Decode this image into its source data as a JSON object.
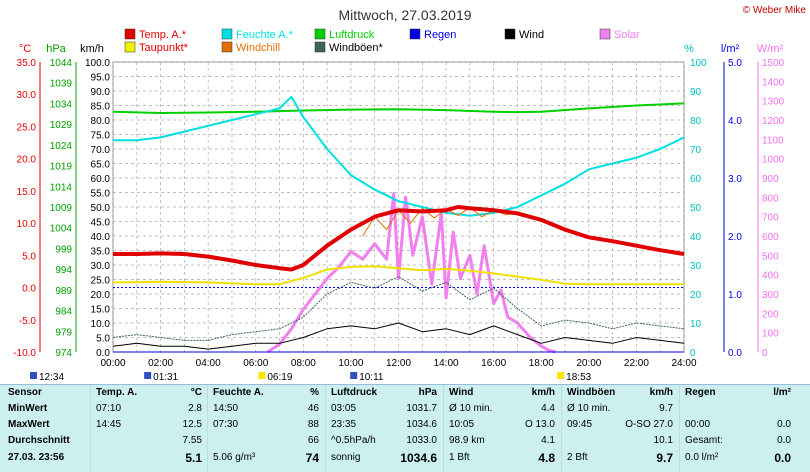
{
  "title": "Mittwoch, 27.03.2019",
  "copyright": "© Weber Mike",
  "colors": {
    "temp": "#e00000",
    "dew": "#f0e000",
    "humidity": "#00e0e0",
    "windchill": "#e07000",
    "pressure": "#00d000",
    "gusts": "#406060",
    "rain": "#0000e0",
    "wind": "#000000",
    "solar": "#f080f0",
    "table_bg": "#ccf0f0"
  },
  "legend": [
    {
      "label": "Temp. A.*",
      "color": "#e00000"
    },
    {
      "label": "Feuchte A.*",
      "color": "#00e0e0"
    },
    {
      "label": "Luftdruck",
      "color": "#00d000"
    },
    {
      "label": "Regen",
      "color": "#0000e0"
    },
    {
      "label": "Wind",
      "color": "#000000"
    },
    {
      "label": "Solar",
      "color": "#f080f0"
    },
    {
      "label": "Taupunkt*",
      "color": "#f0f000"
    },
    {
      "label": "Windchill",
      "color": "#e07000"
    },
    {
      "label": "Windböen*",
      "color": "#406060"
    }
  ],
  "chart_data": {
    "type": "line",
    "axes": {
      "temp": {
        "unit": "°C",
        "min": -10,
        "max": 35,
        "ticks": [
          "35.0",
          "30.0",
          "25.0",
          "20.0",
          "15.0",
          "10.0",
          "5.0",
          "0.0",
          "-5.0",
          "-10.0"
        ]
      },
      "pressure": {
        "unit": "hPa",
        "min": 974,
        "max": 1044,
        "ticks": [
          "1044",
          "1039",
          "1034",
          "1029",
          "1024",
          "1019",
          "1014",
          "1009",
          "1004",
          "999",
          "994",
          "989",
          "984",
          "979",
          "974"
        ]
      },
      "wind": {
        "unit": "km/h",
        "min": 0,
        "max": 100,
        "ticks": [
          "100.0",
          "95.0",
          "90.0",
          "85.0",
          "80.0",
          "75.0",
          "70.0",
          "65.0",
          "60.0",
          "55.0",
          "50.0",
          "45.0",
          "40.0",
          "35.0",
          "30.0",
          "25.0",
          "20.0",
          "15.0",
          "10.0",
          "5.0",
          "0.0"
        ]
      },
      "humidity": {
        "unit": "%",
        "min": 0,
        "max": 100,
        "ticks": [
          "100",
          "90",
          "80",
          "70",
          "60",
          "50",
          "40",
          "30",
          "20",
          "10",
          "0"
        ]
      },
      "rain": {
        "unit": "l/m²",
        "min": 0,
        "max": 5,
        "ticks": [
          "5.0",
          "4.0",
          "3.0",
          "2.0",
          "1.0",
          "0.0"
        ]
      },
      "solar": {
        "unit": "W/m²",
        "min": 0,
        "max": 1500,
        "ticks": [
          "1500",
          "1400",
          "1300",
          "1200",
          "1100",
          "1000",
          "900",
          "800",
          "700",
          "600",
          "500",
          "400",
          "300",
          "200",
          "100",
          "0"
        ]
      },
      "x": {
        "min": 0,
        "max": 24,
        "ticks": [
          "00:00",
          "02:00",
          "04:00",
          "06:00",
          "08:00",
          "10:00",
          "12:00",
          "14:00",
          "16:00",
          "18:00",
          "20:00",
          "22:00",
          "24:00"
        ]
      }
    },
    "series": [
      {
        "name": "Temp. A.*",
        "axis": "temp",
        "x": [
          0,
          1,
          2,
          3,
          4,
          5,
          6,
          7,
          7.5,
          8,
          9,
          10,
          11,
          12,
          13,
          14,
          14.5,
          15,
          16,
          17,
          18,
          19,
          20,
          21,
          22,
          23,
          24
        ],
        "values": [
          5.2,
          5.2,
          5.3,
          5.2,
          4.8,
          4.2,
          3.5,
          3.0,
          2.8,
          3.5,
          6.5,
          9.0,
          11.0,
          12.0,
          11.8,
          12.0,
          12.5,
          12.3,
          12.0,
          11.5,
          10.5,
          9.0,
          7.8,
          7.2,
          6.5,
          5.8,
          5.2
        ]
      },
      {
        "name": "Taupunkt*",
        "axis": "temp",
        "x": [
          0,
          2,
          4,
          6,
          7,
          8,
          9,
          10,
          11,
          12,
          13,
          14,
          15,
          16,
          17,
          18,
          19,
          20,
          22,
          24
        ],
        "values": [
          0.8,
          0.9,
          0.8,
          0.5,
          0.5,
          1.5,
          2.8,
          3.2,
          3.3,
          3.0,
          2.7,
          2.9,
          2.6,
          2.2,
          1.7,
          1.2,
          0.6,
          0.5,
          0.5,
          0.5
        ]
      },
      {
        "name": "Feuchte A.*",
        "axis": "humidity",
        "x": [
          0,
          1,
          2,
          3,
          4,
          5,
          6,
          7,
          7.5,
          8,
          9,
          10,
          11,
          12,
          13,
          14,
          15,
          16,
          17,
          18,
          19,
          20,
          21,
          22,
          23,
          24
        ],
        "values": [
          73,
          73,
          74,
          76,
          78,
          80,
          82,
          84,
          88,
          81,
          70,
          61,
          56,
          52,
          50,
          48,
          47,
          48,
          50,
          54,
          58,
          63,
          65,
          67,
          70,
          74
        ]
      },
      {
        "name": "Luftdruck",
        "axis": "pressure",
        "x": [
          0,
          2,
          4,
          6,
          8,
          10,
          12,
          14,
          16,
          17,
          18,
          20,
          22,
          24
        ],
        "values": [
          1032.0,
          1031.7,
          1031.8,
          1032.0,
          1032.3,
          1032.5,
          1032.6,
          1032.4,
          1032.0,
          1031.9,
          1032.0,
          1032.8,
          1033.5,
          1034.0
        ]
      },
      {
        "name": "Windchill",
        "axis": "temp",
        "x": [
          10.5,
          11,
          11.5,
          12,
          12.5,
          13,
          13.5,
          14,
          14.5,
          15,
          15.5,
          16,
          16.5,
          17
        ],
        "values": [
          8.0,
          11.0,
          9.0,
          12.0,
          10.0,
          12.3,
          10.8,
          12.2,
          11.2,
          12.4,
          11.0,
          12.0,
          11.3,
          11.5
        ]
      },
      {
        "name": "Solar",
        "axis": "solar",
        "x": [
          6.5,
          7,
          7.5,
          8,
          8.5,
          9,
          9.5,
          10,
          10.5,
          11,
          11.5,
          11.8,
          12,
          12.3,
          12.6,
          13,
          13.4,
          13.8,
          14,
          14.3,
          14.6,
          15,
          15.3,
          15.6,
          16,
          16.3,
          16.6,
          17,
          17.5,
          18,
          18.3,
          18.6
        ],
        "values": [
          0,
          40,
          120,
          220,
          300,
          380,
          440,
          520,
          480,
          560,
          480,
          820,
          380,
          800,
          500,
          700,
          350,
          720,
          280,
          620,
          380,
          500,
          300,
          550,
          250,
          320,
          180,
          150,
          80,
          30,
          10,
          0
        ]
      },
      {
        "name": "Wind",
        "axis": "wind",
        "x": [
          0,
          1,
          2,
          3,
          4,
          5,
          6,
          7,
          8,
          9,
          10,
          11,
          12,
          13,
          14,
          15,
          16,
          17,
          18,
          19,
          20,
          21,
          22,
          23,
          24
        ],
        "values": [
          2,
          3,
          2,
          2,
          1,
          2,
          3,
          3,
          5,
          8,
          9,
          8,
          10,
          7,
          8,
          6,
          9,
          6,
          3,
          5,
          4,
          3,
          5,
          4,
          3
        ]
      },
      {
        "name": "Windböen*",
        "axis": "wind",
        "x": [
          0,
          1,
          2,
          3,
          4,
          5,
          6,
          7,
          8,
          9,
          10,
          11,
          12,
          13,
          14,
          15,
          16,
          17,
          18,
          19,
          20,
          21,
          22,
          23,
          24
        ],
        "values": [
          5,
          6,
          5,
          4,
          4,
          6,
          7,
          8,
          12,
          20,
          24,
          22,
          26,
          21,
          24,
          18,
          22,
          15,
          9,
          11,
          10,
          8,
          10,
          9,
          8
        ]
      },
      {
        "name": "Regen",
        "axis": "rain",
        "x": [
          0,
          24
        ],
        "values": [
          0,
          0
        ]
      }
    ],
    "grid": true
  },
  "markers": [
    {
      "label": "12:34",
      "x": 0,
      "kind": "moon"
    },
    {
      "label": "01:31",
      "x": 1.52,
      "kind": "moonset"
    },
    {
      "label": "06:19",
      "x": 6.32,
      "kind": "sunrise"
    },
    {
      "label": "10:11",
      "x": 10.18,
      "kind": "moonrise"
    },
    {
      "label": "18:53",
      "x": 18.88,
      "kind": "sunset"
    }
  ],
  "table": {
    "row_labels": [
      "Sensor",
      "MinWert",
      "MaxWert",
      "Durchschnitt",
      "27.03. 23:56"
    ],
    "cols": [
      {
        "head": "Temp. A.",
        "unit": "°C",
        "rows": [
          [
            "07:10",
            "2.8"
          ],
          [
            "14:45",
            "12.5"
          ],
          [
            "",
            "7.55"
          ],
          [
            "",
            "5.1"
          ]
        ]
      },
      {
        "head": "Feuchte A.",
        "unit": "%",
        "rows": [
          [
            "14:50",
            "46"
          ],
          [
            "07:30",
            "88"
          ],
          [
            "",
            "66"
          ],
          [
            "5.06 g/m³",
            "74"
          ]
        ]
      },
      {
        "head": "Luftdruck",
        "unit": "hPa",
        "rows": [
          [
            "03:05",
            "1031.7"
          ],
          [
            "23:35",
            "1034.6"
          ],
          [
            "^0.5hPa/h",
            "1033.0"
          ],
          [
            "sonnig",
            "1034.6"
          ]
        ]
      },
      {
        "head": "Wind",
        "unit": "km/h",
        "rows": [
          [
            "Ø 10 min.",
            "4.4"
          ],
          [
            "10:05",
            "O 13.0"
          ],
          [
            "98.9 km",
            "4.1"
          ],
          [
            "1 Bft",
            "4.8"
          ]
        ]
      },
      {
        "head": "Windböen",
        "unit": "km/h",
        "rows": [
          [
            "Ø 10 min.",
            "9.7"
          ],
          [
            "09:45",
            "O-SO 27.0"
          ],
          [
            "",
            "10.1"
          ],
          [
            "2 Bft",
            "9.7"
          ]
        ]
      },
      {
        "head": "Regen",
        "unit": "l/m²",
        "rows": [
          [
            "",
            ""
          ],
          [
            "00:00",
            "0.0"
          ],
          [
            "Gesamt:",
            "0.0"
          ],
          [
            "0.0 l/m²",
            "0.0"
          ]
        ]
      }
    ]
  }
}
